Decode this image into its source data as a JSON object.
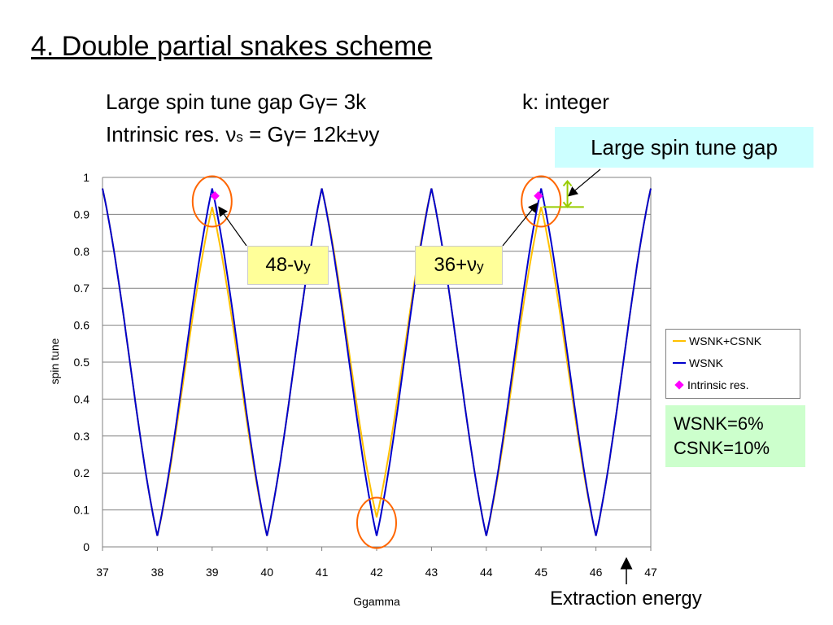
{
  "slide": {
    "title": "4. Double partial snakes scheme",
    "line1_left": "Large spin tune gap Gγ= 3k",
    "line1_right": "k: integer",
    "line2_a": "Intrinsic res. ν",
    "line2_sub": "s",
    "line2_b": " = Gγ= 12k±νy",
    "callout_gap": "Large spin tune gap",
    "label_left_main": "48-ν",
    "label_left_sub": "y",
    "label_right_main": "36+ν",
    "label_right_sub": "y",
    "info_line1": "WSNK=6%",
    "info_line2": "CSNK=10%",
    "extraction": "Extraction energy"
  },
  "colors": {
    "wsnk": "#0000cc",
    "wsnk_csnk": "#ffc000",
    "intrinsic": "#ff00ff",
    "circle": "#ff6600",
    "gap_arrow": "#99cc00",
    "gap_callout_bg": "#ccffff",
    "label_bg": "#ffff99",
    "info_bg": "#ccffcc"
  },
  "chart_data": {
    "type": "line",
    "xlabel": "Ggamma",
    "ylabel": "spin tune",
    "xlim": [
      37,
      47
    ],
    "ylim": [
      0,
      1
    ],
    "x_ticks": [
      "37",
      "38",
      "39",
      "40",
      "41",
      "42",
      "43",
      "44",
      "45",
      "46",
      "47"
    ],
    "y_ticks": [
      "0",
      "0.1",
      "0.2",
      "0.3",
      "0.4",
      "0.5",
      "0.6",
      "0.7",
      "0.8",
      "0.9",
      "1"
    ],
    "grid": true,
    "legend_position": "right",
    "series": [
      {
        "name": "WSNK+CSNK",
        "x": [
          37.0,
          38.0,
          39.0,
          40.0,
          41.0,
          42.0,
          43.0,
          44.0,
          45.0,
          46.0,
          47.0
        ],
        "y": [
          0.97,
          0.03,
          0.92,
          0.03,
          0.97,
          0.08,
          0.97,
          0.03,
          0.92,
          0.03,
          0.97
        ]
      },
      {
        "name": "WSNK",
        "x": [
          37.0,
          38.0,
          39.0,
          40.0,
          41.0,
          42.0,
          43.0,
          44.0,
          45.0,
          46.0,
          47.0
        ],
        "y": [
          0.97,
          0.03,
          0.97,
          0.03,
          0.97,
          0.03,
          0.97,
          0.03,
          0.97,
          0.03,
          0.97
        ]
      },
      {
        "name": "Intrinsic res.",
        "x": [
          39.05,
          44.95
        ],
        "y": [
          0.95,
          0.95
        ]
      }
    ]
  }
}
